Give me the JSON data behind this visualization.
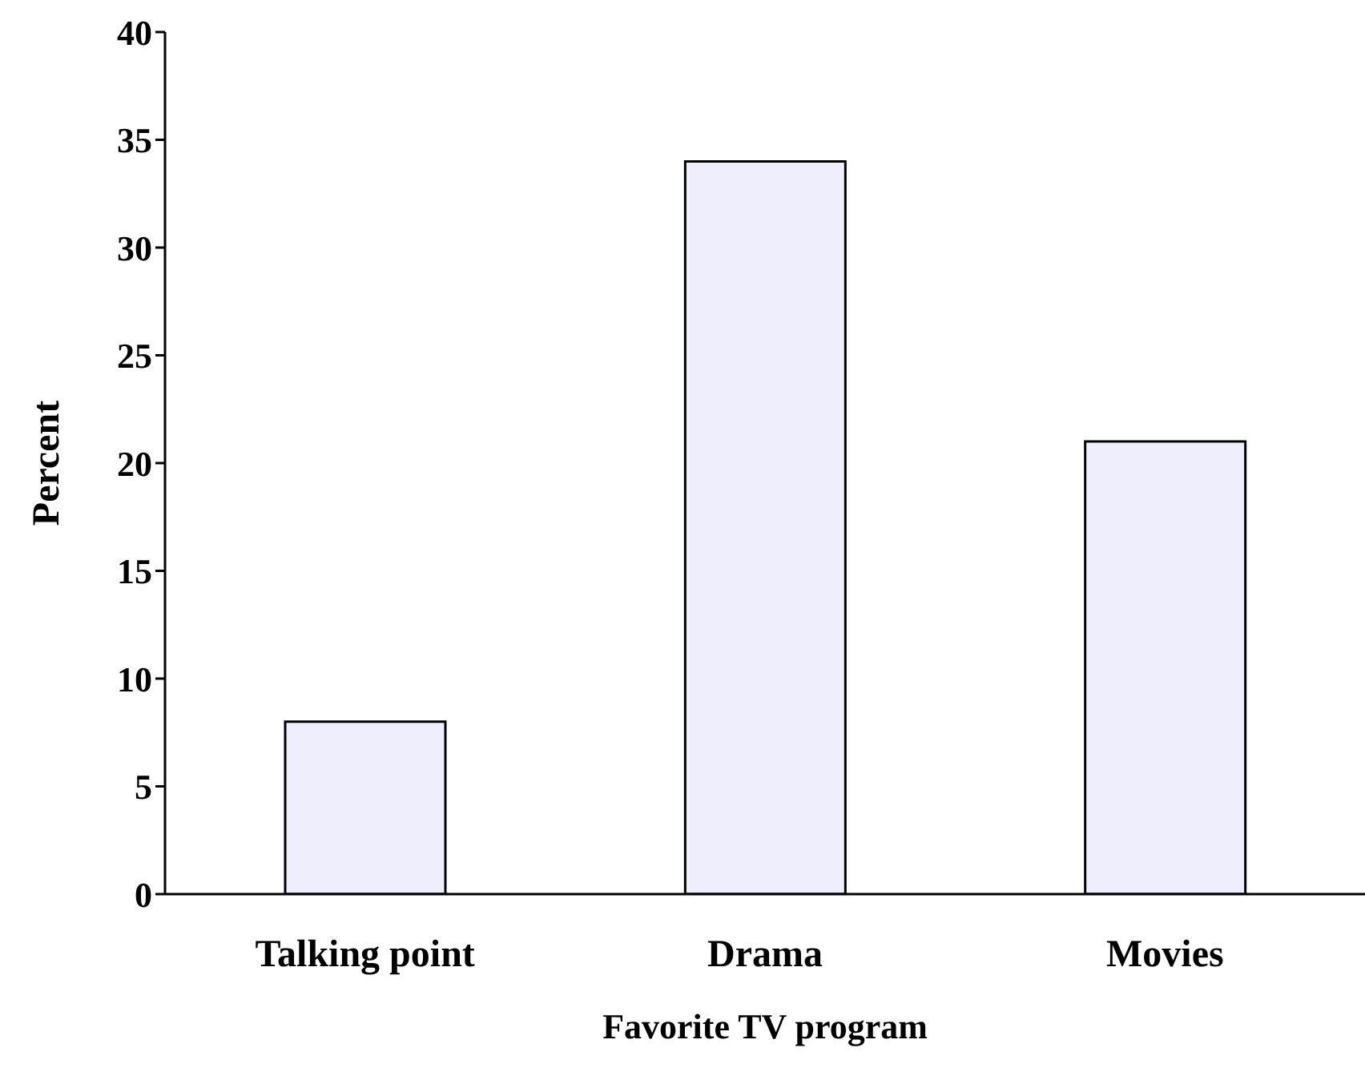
{
  "chart_data": {
    "type": "bar",
    "xlabel": "Favorite TV program",
    "ylabel": "Percent",
    "categories": [
      "Talking point",
      "Drama",
      "Movies"
    ],
    "values": [
      8,
      34,
      21
    ],
    "color": "#eeeefc",
    "ylim": [
      0,
      40
    ],
    "yticks": [
      0,
      5,
      10,
      15,
      20,
      25,
      30,
      35,
      40
    ],
    "grid": false,
    "legend": false
  }
}
